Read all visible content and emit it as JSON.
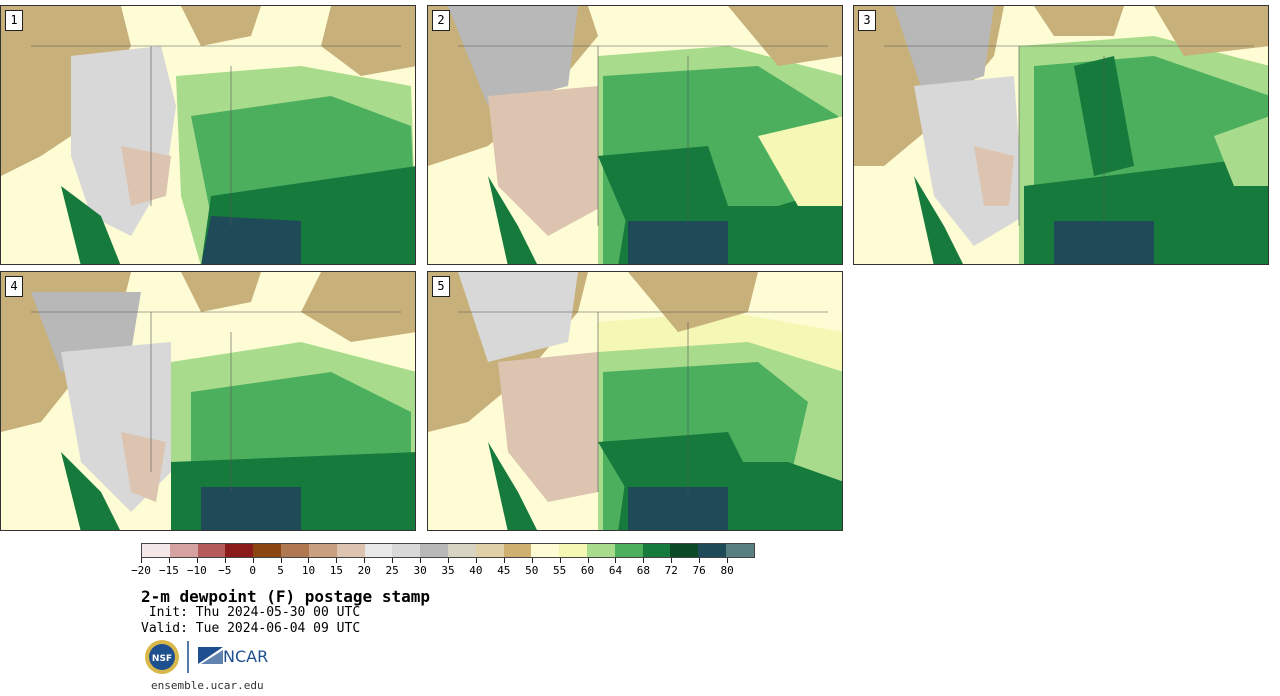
{
  "panels": [
    {
      "label": "1"
    },
    {
      "label": "2"
    },
    {
      "label": "3"
    },
    {
      "label": "4"
    },
    {
      "label": "5"
    }
  ],
  "colorbar": {
    "colors": [
      "#f4e8e8",
      "#d5a1a1",
      "#b45a5a",
      "#8b1a1a",
      "#8b4513",
      "#b07850",
      "#c8a080",
      "#dcc4b0",
      "#e8e8e8",
      "#d8d8d8",
      "#b8b8b8",
      "#d8d4c4",
      "#e0d0a8",
      "#d0b070",
      "#fdfcd4",
      "#f4f8b4",
      "#a8dc8c",
      "#4caf5e",
      "#157a3c",
      "#0a4a24",
      "#1f4a58",
      "#5a7f80"
    ],
    "ticks": [
      "−20",
      "−15",
      "−10",
      "−5",
      "0",
      "5",
      "10",
      "15",
      "20",
      "25",
      "30",
      "35",
      "40",
      "45",
      "50",
      "55",
      "60",
      "64",
      "68",
      "72",
      "76",
      "80"
    ]
  },
  "title": "2-m dewpoint (F) postage stamp",
  "init_line": " Init: Thu 2024-05-30 00 UTC",
  "valid_line": "Valid: Tue 2024-06-04 09 UTC",
  "logos": {
    "nsf": "NSF",
    "ncar": "NCAR"
  },
  "url": "ensemble.ucar.edu"
}
